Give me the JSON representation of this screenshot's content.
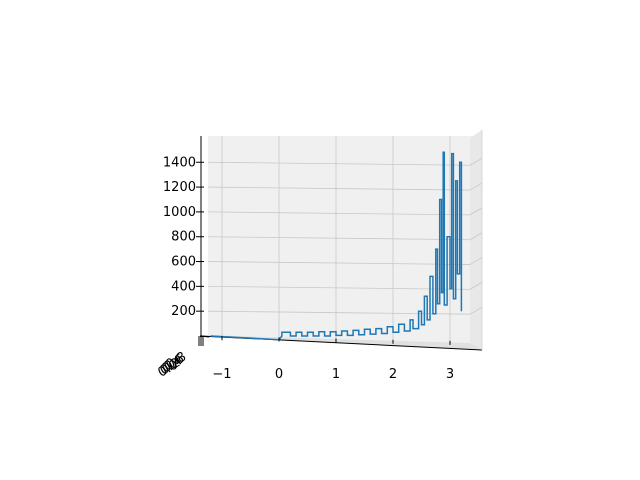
{
  "chart_data": {
    "type": "line",
    "projection": "3d",
    "x_ticks": [
      "−1",
      "0",
      "1",
      "2",
      "3"
    ],
    "z_ticks": [
      "200",
      "400",
      "600",
      "800",
      "1000",
      "1200",
      "1400"
    ],
    "y_ticks": [
      "0.0",
      "0.2",
      "0.4",
      "0.6",
      "0.8"
    ],
    "x_range": [
      -1.4,
      3.5
    ],
    "z_range": [
      0,
      1480
    ],
    "grid": true,
    "series": [
      {
        "color": "#1f77b4",
        "points": [
          [
            -1.2,
            0
          ],
          [
            0.0,
            -30
          ],
          [
            0.05,
            0
          ],
          [
            0.05,
            30
          ],
          [
            0.2,
            30
          ],
          [
            0.2,
            0
          ],
          [
            0.3,
            0
          ],
          [
            0.3,
            30
          ],
          [
            0.4,
            30
          ],
          [
            0.4,
            0
          ],
          [
            0.5,
            0
          ],
          [
            0.5,
            30
          ],
          [
            0.6,
            30
          ],
          [
            0.6,
            0
          ],
          [
            0.7,
            0
          ],
          [
            0.7,
            35
          ],
          [
            0.8,
            35
          ],
          [
            0.8,
            0
          ],
          [
            0.9,
            0
          ],
          [
            0.9,
            35
          ],
          [
            1.0,
            35
          ],
          [
            1.0,
            5
          ],
          [
            1.1,
            5
          ],
          [
            1.1,
            40
          ],
          [
            1.2,
            40
          ],
          [
            1.2,
            5
          ],
          [
            1.3,
            5
          ],
          [
            1.3,
            45
          ],
          [
            1.4,
            45
          ],
          [
            1.4,
            10
          ],
          [
            1.5,
            10
          ],
          [
            1.5,
            55
          ],
          [
            1.6,
            55
          ],
          [
            1.6,
            15
          ],
          [
            1.7,
            15
          ],
          [
            1.7,
            60
          ],
          [
            1.8,
            60
          ],
          [
            1.8,
            20
          ],
          [
            1.9,
            20
          ],
          [
            1.9,
            75
          ],
          [
            2.0,
            75
          ],
          [
            2.0,
            30
          ],
          [
            2.1,
            30
          ],
          [
            2.1,
            95
          ],
          [
            2.2,
            95
          ],
          [
            2.2,
            40
          ],
          [
            2.3,
            40
          ],
          [
            2.3,
            130
          ],
          [
            2.35,
            130
          ],
          [
            2.35,
            60
          ],
          [
            2.45,
            60
          ],
          [
            2.45,
            200
          ],
          [
            2.5,
            200
          ],
          [
            2.5,
            90
          ],
          [
            2.55,
            90
          ],
          [
            2.55,
            320
          ],
          [
            2.6,
            320
          ],
          [
            2.6,
            130
          ],
          [
            2.65,
            130
          ],
          [
            2.65,
            480
          ],
          [
            2.7,
            480
          ],
          [
            2.7,
            180
          ],
          [
            2.75,
            180
          ],
          [
            2.75,
            700
          ],
          [
            2.78,
            700
          ],
          [
            2.78,
            260
          ],
          [
            2.82,
            260
          ],
          [
            2.82,
            1100
          ],
          [
            2.85,
            1100
          ],
          [
            2.85,
            350
          ],
          [
            2.88,
            350
          ],
          [
            2.88,
            1480
          ],
          [
            2.9,
            1480
          ],
          [
            2.9,
            250
          ],
          [
            2.95,
            250
          ],
          [
            2.95,
            800
          ],
          [
            3.0,
            800
          ],
          [
            3.0,
            380
          ],
          [
            3.03,
            380
          ],
          [
            3.03,
            1470
          ],
          [
            3.06,
            1470
          ],
          [
            3.06,
            300
          ],
          [
            3.1,
            300
          ],
          [
            3.1,
            1250
          ],
          [
            3.13,
            1250
          ],
          [
            3.13,
            500
          ],
          [
            3.17,
            500
          ],
          [
            3.17,
            1400
          ],
          [
            3.2,
            1400
          ],
          [
            3.2,
            200
          ]
        ]
      }
    ]
  }
}
